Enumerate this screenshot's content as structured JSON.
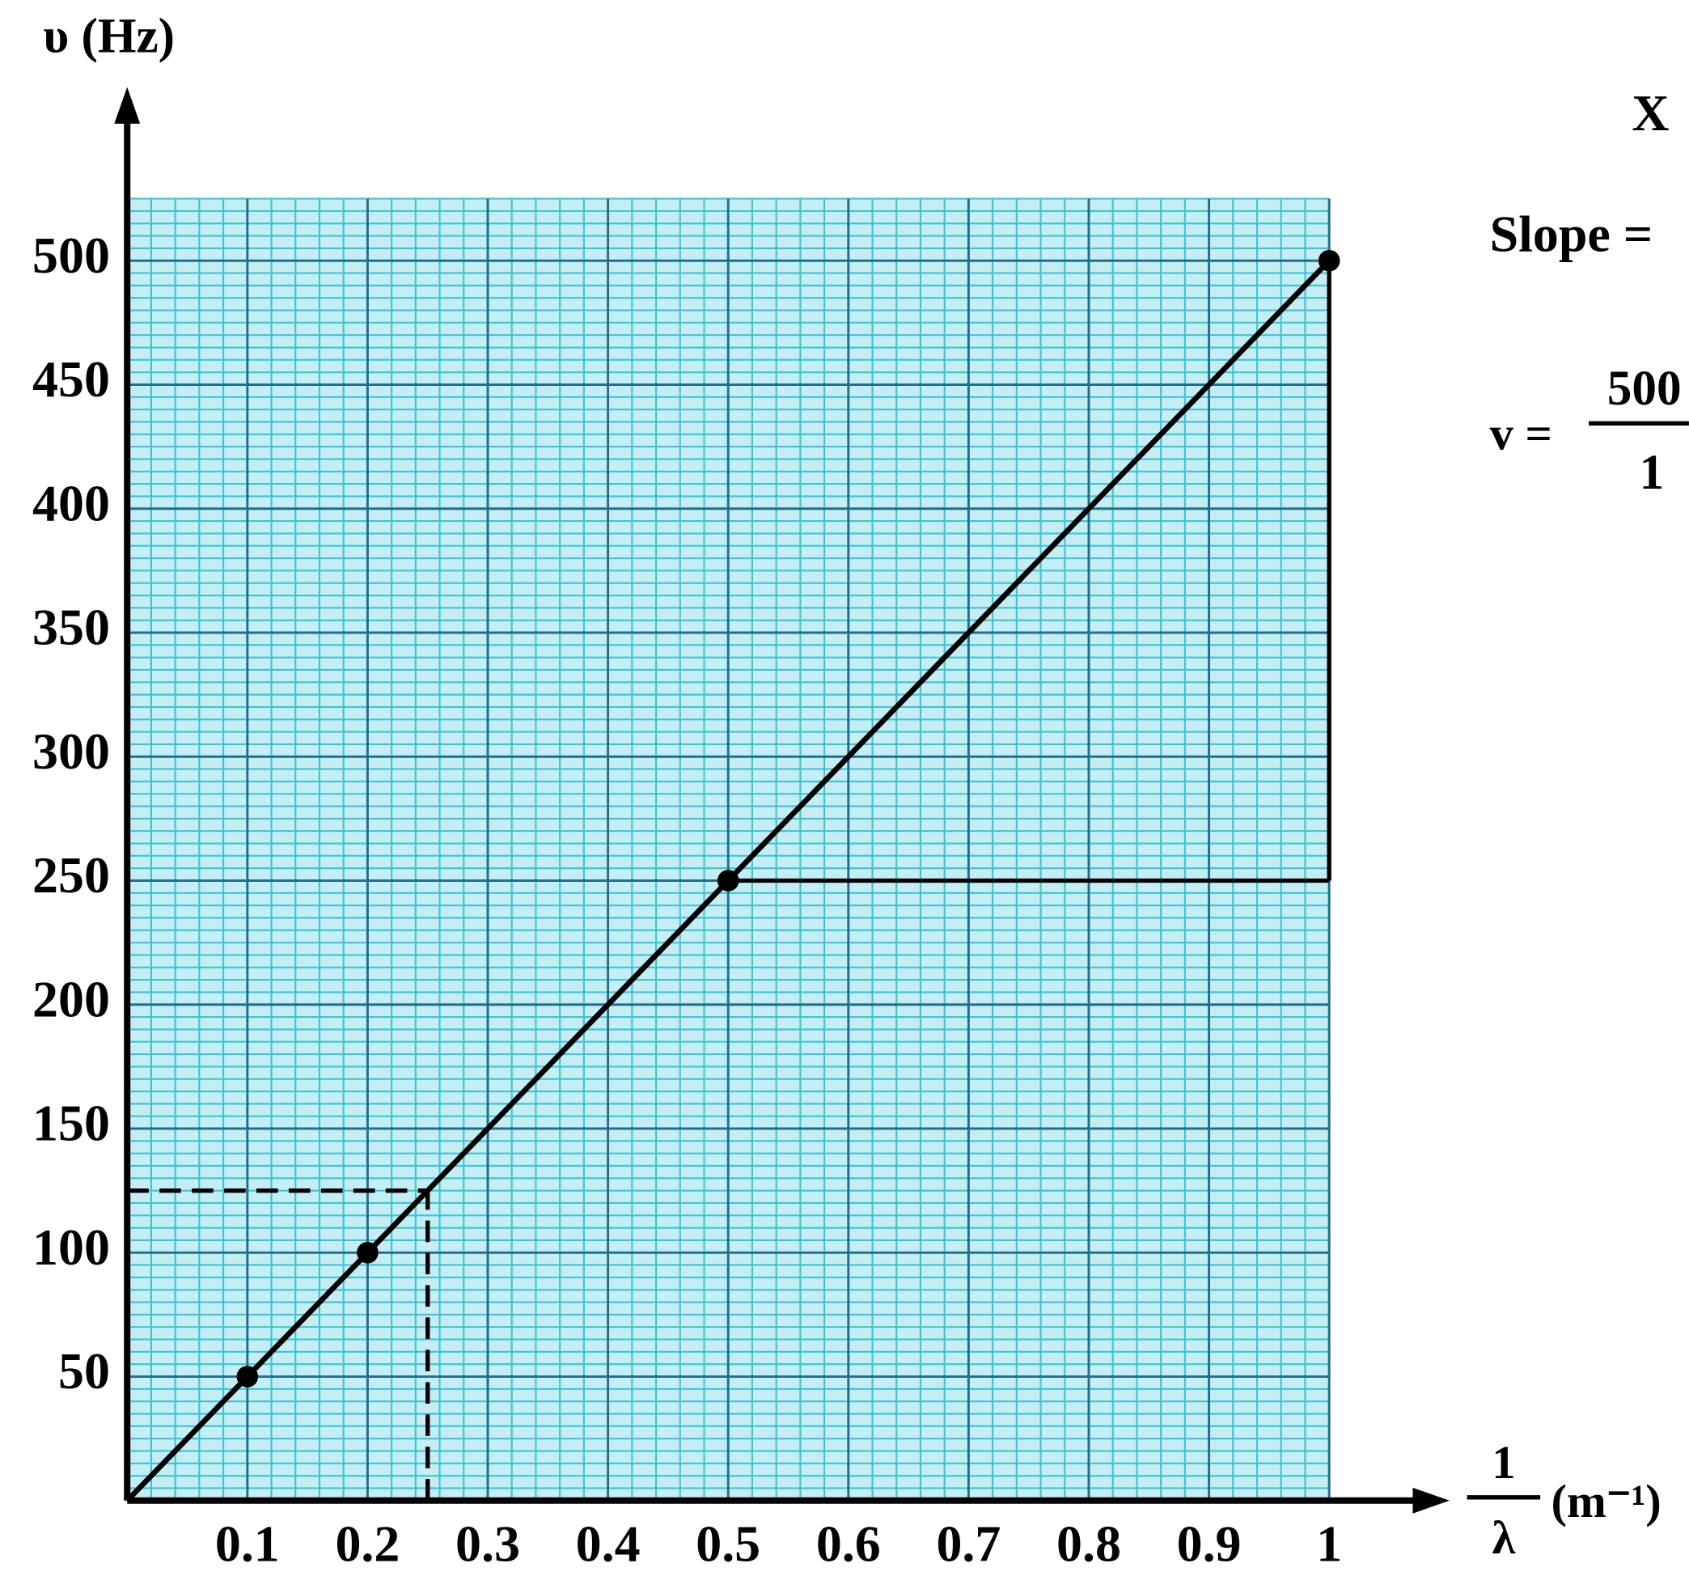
{
  "chart_data": {
    "type": "line",
    "y_label": "υ (Hz)",
    "x_label": {
      "numerator": "1",
      "denominator": "λ",
      "unit": "(m⁻¹)"
    },
    "x": [
      0.1,
      0.2,
      0.5,
      1
    ],
    "values": [
      50,
      100,
      250,
      500
    ],
    "fit": {
      "x": [
        0,
        1
      ],
      "values": [
        0,
        500
      ]
    },
    "guide": {
      "x": 0.25,
      "y": 125
    },
    "xlim": [
      0,
      1.1
    ],
    "ylim": [
      0,
      570
    ],
    "xticks": [
      0.1,
      0.2,
      0.3,
      0.4,
      0.5,
      0.6,
      0.7,
      0.8,
      0.9,
      1
    ],
    "yticks": [
      50,
      100,
      150,
      200,
      250,
      300,
      350,
      400,
      450,
      500
    ],
    "grid": true,
    "color": "#000000",
    "side_text": {
      "label": "X",
      "slope": "Slope =",
      "v": "v =",
      "numerator": "500",
      "denominator": "1"
    }
  }
}
